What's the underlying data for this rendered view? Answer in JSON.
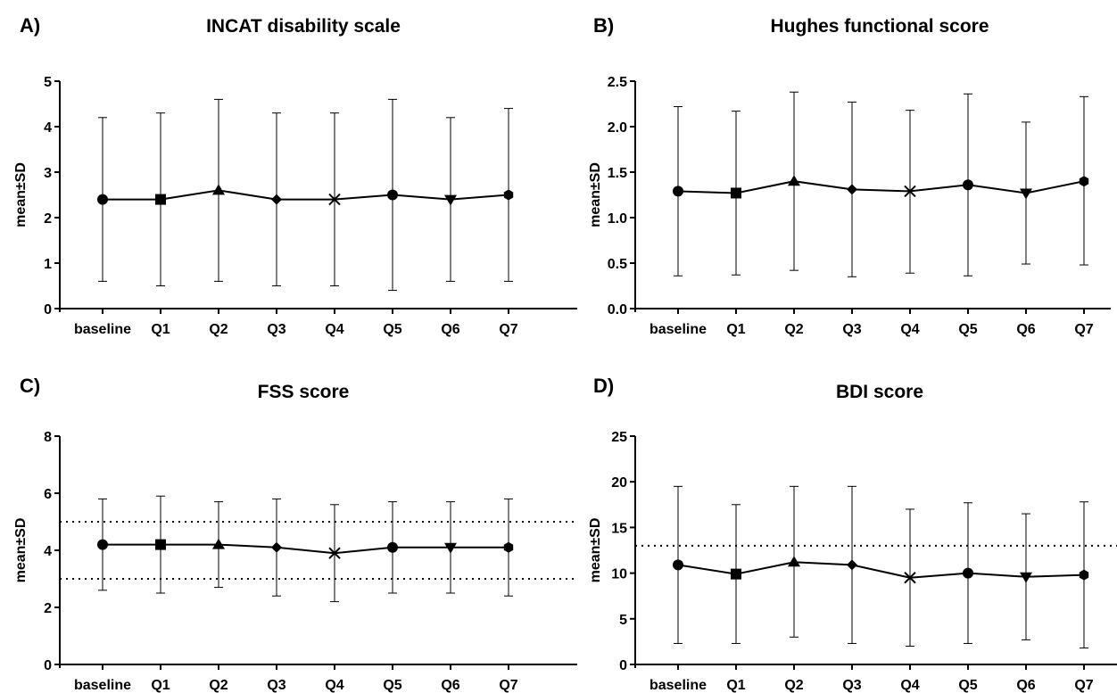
{
  "chart_data": [
    {
      "panel_label": "A)",
      "type": "line",
      "title": "INCAT disability scale",
      "xlabel": "",
      "ylabel": "mean±SD",
      "categories": [
        "baseline",
        "Q1",
        "Q2",
        "Q3",
        "Q4",
        "Q5",
        "Q6",
        "Q7"
      ],
      "markers": [
        "circle",
        "square",
        "triangle",
        "diamond",
        "x",
        "circle",
        "triangle-down",
        "hexagon"
      ],
      "values": [
        2.4,
        2.4,
        2.6,
        2.4,
        2.4,
        2.5,
        2.4,
        2.5
      ],
      "lower": [
        0.6,
        0.5,
        0.6,
        0.5,
        0.5,
        0.4,
        0.6,
        0.6
      ],
      "upper": [
        4.2,
        4.3,
        4.6,
        4.3,
        4.3,
        4.6,
        4.2,
        4.4
      ],
      "ylim": [
        0,
        5
      ],
      "yticks": [
        "0",
        "1",
        "2",
        "3",
        "4",
        "5"
      ],
      "reference_lines": [],
      "grid": false
    },
    {
      "panel_label": "B)",
      "type": "line",
      "title": "Hughes functional score",
      "xlabel": "",
      "ylabel": "mean±SD",
      "categories": [
        "baseline",
        "Q1",
        "Q2",
        "Q3",
        "Q4",
        "Q5",
        "Q6",
        "Q7"
      ],
      "markers": [
        "circle",
        "square",
        "triangle",
        "diamond",
        "x",
        "circle",
        "triangle-down",
        "hexagon"
      ],
      "values": [
        1.29,
        1.27,
        1.4,
        1.31,
        1.29,
        1.36,
        1.27,
        1.4
      ],
      "lower": [
        0.36,
        0.37,
        0.42,
        0.35,
        0.39,
        0.36,
        0.49,
        0.48
      ],
      "upper": [
        2.22,
        2.17,
        2.38,
        2.27,
        2.18,
        2.36,
        2.05,
        2.33
      ],
      "ylim": [
        0,
        2.5
      ],
      "yticks": [
        "0.0",
        "0.5",
        "1.0",
        "1.5",
        "2.0",
        "2.5"
      ],
      "reference_lines": [],
      "grid": false
    },
    {
      "panel_label": "C)",
      "type": "line",
      "title": "FSS score",
      "xlabel": "",
      "ylabel": "mean±SD",
      "categories": [
        "baseline",
        "Q1",
        "Q2",
        "Q3",
        "Q4",
        "Q5",
        "Q6",
        "Q7"
      ],
      "markers": [
        "circle",
        "square",
        "triangle",
        "diamond",
        "x",
        "circle",
        "triangle-down",
        "hexagon"
      ],
      "values": [
        4.2,
        4.2,
        4.2,
        4.1,
        3.9,
        4.1,
        4.1,
        4.1
      ],
      "lower": [
        2.6,
        2.5,
        2.7,
        2.4,
        2.2,
        2.5,
        2.5,
        2.4
      ],
      "upper": [
        5.8,
        5.9,
        5.7,
        5.8,
        5.6,
        5.7,
        5.7,
        5.8
      ],
      "ylim": [
        0,
        8
      ],
      "yticks": [
        "0",
        "2",
        "4",
        "6",
        "8"
      ],
      "reference_lines": [
        3,
        5
      ],
      "grid": false
    },
    {
      "panel_label": "D)",
      "type": "line",
      "title": "BDI score",
      "xlabel": "",
      "ylabel": "mean±SD",
      "categories": [
        "baseline",
        "Q1",
        "Q2",
        "Q3",
        "Q4",
        "Q5",
        "Q6",
        "Q7"
      ],
      "markers": [
        "circle",
        "square",
        "triangle",
        "diamond",
        "x",
        "circle",
        "triangle-down",
        "hexagon"
      ],
      "values": [
        10.9,
        9.9,
        11.2,
        10.9,
        9.5,
        10.0,
        9.6,
        9.8
      ],
      "lower": [
        2.3,
        2.3,
        3.0,
        2.3,
        2.0,
        2.3,
        2.7,
        1.8
      ],
      "upper": [
        19.5,
        17.5,
        19.5,
        19.5,
        17.0,
        17.7,
        16.5,
        17.8
      ],
      "ylim": [
        0,
        25
      ],
      "yticks": [
        "0",
        "5",
        "10",
        "15",
        "20",
        "25"
      ],
      "reference_lines": [
        13
      ],
      "grid": false
    }
  ],
  "colors": {
    "ink": "#000000",
    "background": "#ffffff"
  }
}
